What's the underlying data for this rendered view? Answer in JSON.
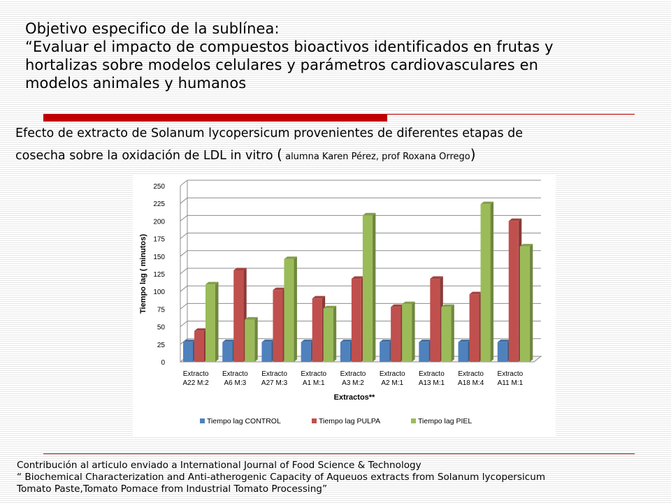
{
  "objective": {
    "line1": "Objetivo especifico de la sublínea:",
    "line2": "“Evaluar el impacto de compuestos bioactivos identificados en frutas y",
    "line3": "hortalizas sobre modelos celulares y parámetros cardiovasculares en",
    "line4": "modelos animales y  humanos"
  },
  "subtitle": {
    "line1": "Efecto de extracto de Solanum lycopersicum  provenientes de diferentes etapas  de",
    "line2_main": "cosecha sobre la oxidación de LDL in vitro ",
    "paren_open": "(",
    "line2_small": " alumna Karen Pérez, prof Roxana Orrego",
    "paren_close": ")"
  },
  "chart_data": {
    "type": "bar",
    "categories": [
      [
        "Extracto",
        "A22 M:2"
      ],
      [
        "Extracto",
        "A6 M:3"
      ],
      [
        "Extracto",
        "A27 M:3"
      ],
      [
        "Extracto",
        "A1 M:1"
      ],
      [
        "Extracto",
        "A3 M:2"
      ],
      [
        "Extracto",
        "A2 M:1"
      ],
      [
        "Extracto",
        "A13 M:1"
      ],
      [
        "Extracto",
        "A18 M:4"
      ],
      [
        "Extracto",
        "A11 M:1"
      ]
    ],
    "series": [
      {
        "name": "Tiempo lag CONTROL",
        "color": "#4f81bd",
        "values": [
          28,
          28,
          28,
          28,
          28,
          28,
          28,
          28,
          28
        ]
      },
      {
        "name": "Tiempo lag PULPA",
        "color": "#c0504d",
        "values": [
          44,
          130,
          102,
          90,
          118,
          78,
          118,
          96,
          200
        ]
      },
      {
        "name": "Tiempo lag PIEL",
        "color": "#9bbb59",
        "values": [
          110,
          60,
          146,
          76,
          208,
          82,
          78,
          224,
          164
        ]
      }
    ],
    "xlabel": "Extractos**",
    "ylabel": "Tiempo lag ( minutos)",
    "ylim": [
      0,
      250
    ],
    "yticks": [
      0,
      25,
      50,
      75,
      100,
      125,
      150,
      175,
      200,
      225,
      250
    ],
    "grid": true,
    "legend": "bottom"
  },
  "footer": {
    "line1": "Contribución al articulo enviado a    International Journal of Food Science & Technology",
    "line2": "“ Biochemical Characterization and Anti-atherogenic Capacity of Aqueuos extracts from Solanum lycopersicum",
    "line3": "Tomato Paste,Tomato Pomace from Industrial Tomato Processing”"
  }
}
